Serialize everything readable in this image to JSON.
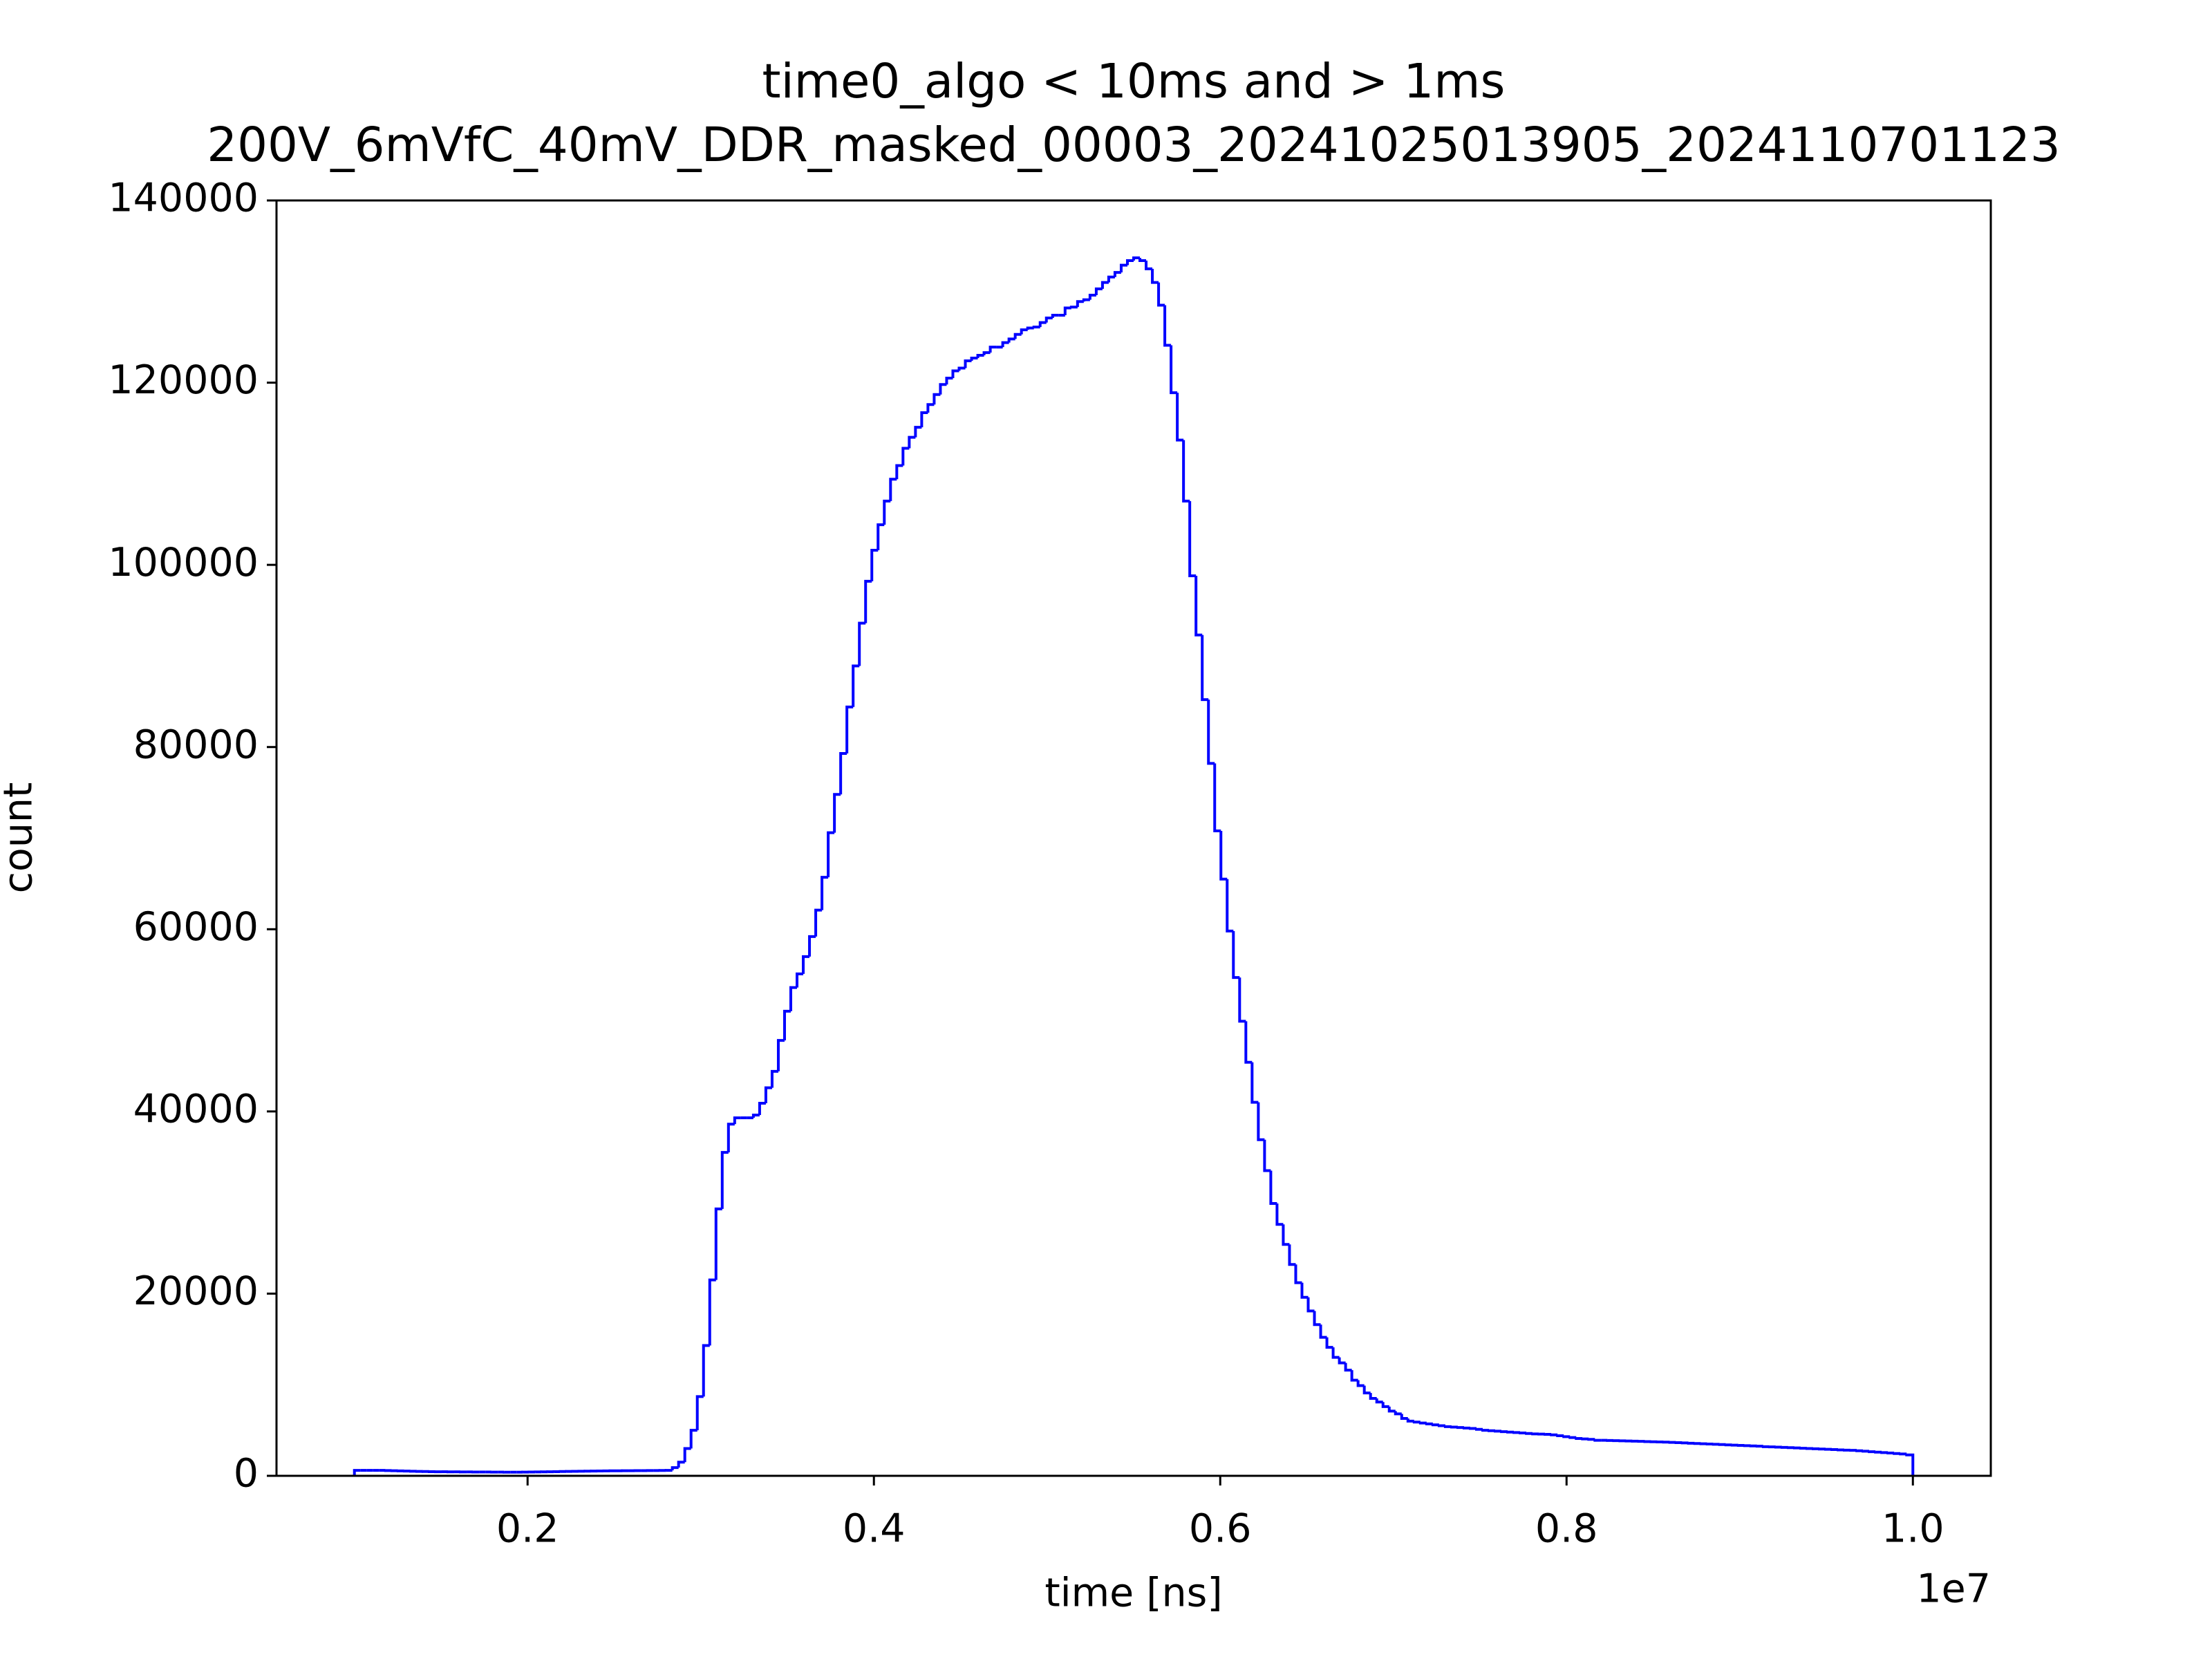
{
  "chart_data": {
    "type": "histogram",
    "title": "time0_algo < 10ms and > 1ms",
    "subtitle": "200V_6mVfC_40mV_DDR_masked_00003_20241025013905_2024110701123",
    "x_label": "time [ns]",
    "y_label": "count",
    "x_offset_label": "1e7",
    "color": "#0000ff",
    "xlim": [
      550000,
      10450000
    ],
    "ylim": [
      0,
      140000
    ],
    "xticks": [
      {
        "value": 2000000,
        "label": "0.2"
      },
      {
        "value": 4000000,
        "label": "0.4"
      },
      {
        "value": 6000000,
        "label": "0.6"
      },
      {
        "value": 8000000,
        "label": "0.8"
      },
      {
        "value": 10000000,
        "label": "1.0"
      }
    ],
    "yticks": [
      0,
      20000,
      40000,
      60000,
      80000,
      100000,
      120000,
      140000
    ],
    "bins": [
      1000000,
      1036000,
      1072000,
      1108000,
      1144000,
      1180000,
      1216000,
      1252000,
      1288000,
      1324000,
      1360000,
      1396000,
      1432000,
      1468000,
      1504000,
      1540000,
      1576000,
      1612000,
      1648000,
      1684000,
      1720000,
      1756000,
      1792000,
      1828000,
      1864000,
      1900000,
      1936000,
      1972000,
      2008000,
      2044000,
      2080000,
      2116000,
      2152000,
      2188000,
      2224000,
      2260000,
      2296000,
      2332000,
      2368000,
      2404000,
      2440000,
      2476000,
      2512000,
      2548000,
      2584000,
      2620000,
      2656000,
      2692000,
      2728000,
      2764000,
      2800000,
      2836000,
      2872000,
      2908000,
      2944000,
      2980000,
      3016000,
      3052000,
      3088000,
      3124000,
      3160000,
      3196000,
      3232000,
      3268000,
      3304000,
      3340000,
      3376000,
      3412000,
      3448000,
      3484000,
      3520000,
      3556000,
      3592000,
      3628000,
      3664000,
      3700000,
      3736000,
      3772000,
      3808000,
      3844000,
      3880000,
      3916000,
      3952000,
      3988000,
      4024000,
      4060000,
      4096000,
      4132000,
      4168000,
      4204000,
      4240000,
      4276000,
      4312000,
      4348000,
      4384000,
      4420000,
      4456000,
      4492000,
      4528000,
      4564000,
      4600000,
      4636000,
      4672000,
      4708000,
      4744000,
      4780000,
      4816000,
      4852000,
      4888000,
      4924000,
      4960000,
      4996000,
      5032000,
      5068000,
      5104000,
      5140000,
      5176000,
      5212000,
      5248000,
      5284000,
      5320000,
      5356000,
      5392000,
      5428000,
      5464000,
      5500000,
      5536000,
      5572000,
      5608000,
      5644000,
      5680000,
      5716000,
      5752000,
      5788000,
      5824000,
      5860000,
      5896000,
      5932000,
      5968000,
      6004000,
      6040000,
      6076000,
      6112000,
      6148000,
      6184000,
      6220000,
      6256000,
      6292000,
      6328000,
      6364000,
      6400000,
      6436000,
      6472000,
      6508000,
      6544000,
      6580000,
      6616000,
      6652000,
      6688000,
      6724000,
      6760000,
      6796000,
      6832000,
      6868000,
      6904000,
      6940000,
      6976000,
      7012000,
      7048000,
      7084000,
      7120000,
      7156000,
      7192000,
      7228000,
      7264000,
      7300000,
      7336000,
      7372000,
      7408000,
      7444000,
      7480000,
      7516000,
      7552000,
      7588000,
      7624000,
      7660000,
      7696000,
      7732000,
      7768000,
      7804000,
      7840000,
      7876000,
      7912000,
      7948000,
      7984000,
      8020000,
      8056000,
      8092000,
      8128000,
      8164000,
      8200000,
      8236000,
      8272000,
      8308000,
      8344000,
      8380000,
      8416000,
      8452000,
      8488000,
      8524000,
      8560000,
      8596000,
      8632000,
      8668000,
      8704000,
      8740000,
      8776000,
      8812000,
      8848000,
      8884000,
      8920000,
      8956000,
      8992000,
      9028000,
      9064000,
      9100000,
      9136000,
      9172000,
      9208000,
      9244000,
      9280000,
      9316000,
      9352000,
      9388000,
      9424000,
      9460000,
      9496000,
      9532000,
      9568000,
      9604000,
      9640000,
      9676000,
      9712000,
      9748000,
      9784000,
      9820000,
      9856000,
      9892000,
      9928000,
      9964000,
      10000000
    ],
    "counts": [
      600,
      600,
      600,
      600,
      600,
      580,
      560,
      540,
      520,
      500,
      480,
      470,
      460,
      450,
      450,
      440,
      440,
      430,
      430,
      420,
      420,
      420,
      410,
      410,
      400,
      400,
      400,
      410,
      420,
      430,
      440,
      450,
      460,
      470,
      480,
      490,
      500,
      510,
      520,
      530,
      540,
      550,
      550,
      560,
      560,
      570,
      570,
      580,
      580,
      590,
      600,
      900,
      1500,
      3000,
      5000,
      8700,
      14300,
      21500,
      29300,
      35500,
      38600,
      39300,
      39300,
      39300,
      39600,
      40900,
      42600,
      44400,
      47800,
      51000,
      53600,
      55100,
      57000,
      59200,
      62100,
      65700,
      70600,
      74800,
      79300,
      84400,
      88900,
      93600,
      98200,
      101600,
      104400,
      107000,
      109400,
      110900,
      112800,
      114000,
      115100,
      116700,
      117600,
      118700,
      119800,
      120500,
      121300,
      121600,
      122400,
      122700,
      123000,
      123300,
      123900,
      123900,
      124400,
      124800,
      125300,
      125800,
      126000,
      126100,
      126600,
      127100,
      127400,
      127400,
      128200,
      128300,
      128900,
      129100,
      129600,
      130300,
      131000,
      131600,
      132100,
      132900,
      133400,
      133700,
      133400,
      132500,
      131000,
      128500,
      124100,
      118900,
      113700,
      107000,
      98800,
      92300,
      85200,
      78200,
      70800,
      65500,
      59800,
      54700,
      49900,
      45400,
      41000,
      36900,
      33500,
      29900,
      27600,
      25400,
      23200,
      21200,
      19600,
      18100,
      16600,
      15200,
      14100,
      13000,
      12400,
      11600,
      10500,
      9900,
      9100,
      8500,
      8100,
      7600,
      7100,
      6800,
      6300,
      6000,
      5900,
      5800,
      5700,
      5600,
      5500,
      5400,
      5350,
      5300,
      5250,
      5200,
      5100,
      5000,
      4950,
      4900,
      4850,
      4800,
      4750,
      4700,
      4650,
      4600,
      4580,
      4550,
      4500,
      4400,
      4300,
      4200,
      4100,
      4050,
      4000,
      3900,
      3900,
      3880,
      3860,
      3840,
      3820,
      3800,
      3780,
      3760,
      3740,
      3720,
      3700,
      3670,
      3640,
      3610,
      3580,
      3550,
      3520,
      3490,
      3460,
      3430,
      3400,
      3370,
      3340,
      3310,
      3280,
      3250,
      3200,
      3180,
      3150,
      3120,
      3090,
      3060,
      3030,
      3000,
      2970,
      2940,
      2910,
      2880,
      2850,
      2820,
      2800,
      2750,
      2700,
      2650,
      2600,
      2550,
      2500,
      2450,
      2400,
      2300
    ]
  }
}
